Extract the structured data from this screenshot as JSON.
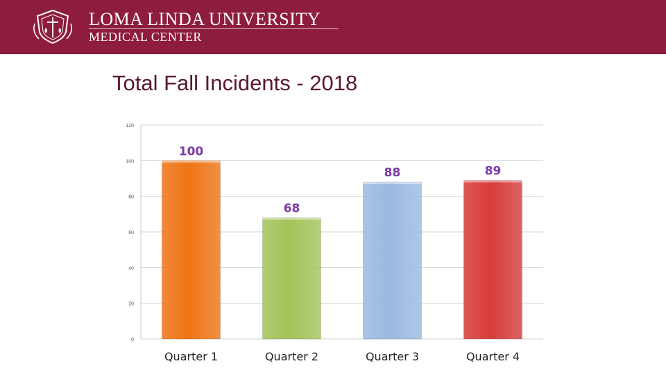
{
  "header": {
    "org_name": "LOMA LINDA UNIVERSITY",
    "org_sub": "MEDICAL CENTER",
    "logo_icon": "university-crest-icon",
    "background_color": "#8e1c3c"
  },
  "slide": {
    "title": "Total Fall Incidents - 2018"
  },
  "chart_data": {
    "type": "bar",
    "categories": [
      "Quarter 1",
      "Quarter 2",
      "Quarter 3",
      "Quarter 4"
    ],
    "values": [
      100,
      68,
      88,
      89
    ],
    "data_labels": [
      "100",
      "68",
      "88",
      "89"
    ],
    "bar_colors": [
      "#ef7414",
      "#a3c35a",
      "#9ab9e0",
      "#d63c3a"
    ],
    "data_label_color": "#7a3aa6",
    "yticks": [
      0,
      20,
      40,
      60,
      80,
      100,
      120
    ],
    "ylim": [
      0,
      120
    ],
    "grid": true,
    "legend": "none"
  }
}
